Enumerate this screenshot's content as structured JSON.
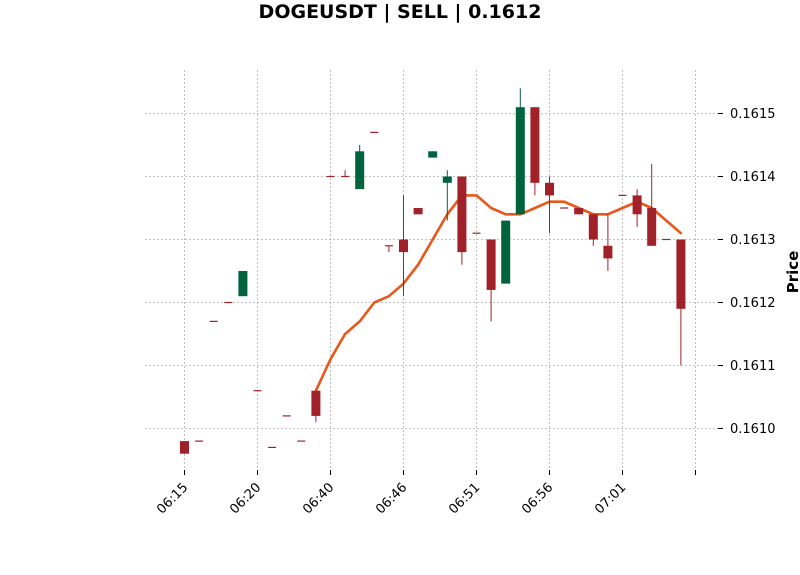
{
  "chart_data": {
    "type": "candlestick",
    "title": "DOGEUSDT | SELL | 0.1612",
    "ylabel": "Price",
    "ylim": [
      0.16093,
      0.16157
    ],
    "yticks": [
      0.161,
      0.1611,
      0.1612,
      0.1613,
      0.1614,
      0.1615
    ],
    "ytick_labels": [
      "0.1610",
      "0.1611",
      "0.1612",
      "0.1613",
      "0.1614",
      "0.1615"
    ],
    "xticks": [
      {
        "index": 0,
        "label": "06:15"
      },
      {
        "index": 5,
        "label": "06:20"
      },
      {
        "index": 10,
        "label": "06:40"
      },
      {
        "index": 15,
        "label": "06:46"
      },
      {
        "index": 20,
        "label": "06:51"
      },
      {
        "index": 25,
        "label": "06:56"
      },
      {
        "index": 30,
        "label": "07:01"
      },
      {
        "index": 35,
        "label": ""
      }
    ],
    "up_color": "#006340",
    "down_color": "#a02128",
    "ma_color": "#e8581a",
    "candles": [
      {
        "o": 0.16098,
        "h": 0.16098,
        "l": 0.16096,
        "c": 0.16096
      },
      {
        "o": 0.16098,
        "h": 0.16098,
        "l": 0.16098,
        "c": 0.16098
      },
      {
        "o": 0.16117,
        "h": 0.16117,
        "l": 0.16117,
        "c": 0.16117
      },
      {
        "o": 0.1612,
        "h": 0.1612,
        "l": 0.1612,
        "c": 0.1612
      },
      {
        "o": 0.16121,
        "h": 0.16125,
        "l": 0.16121,
        "c": 0.16125
      },
      {
        "o": 0.16106,
        "h": 0.16106,
        "l": 0.16106,
        "c": 0.16106
      },
      {
        "o": 0.16097,
        "h": 0.16097,
        "l": 0.16097,
        "c": 0.16097
      },
      {
        "o": 0.16102,
        "h": 0.16102,
        "l": 0.16102,
        "c": 0.16102
      },
      {
        "o": 0.16098,
        "h": 0.16098,
        "l": 0.16098,
        "c": 0.16098
      },
      {
        "o": 0.16106,
        "h": 0.16106,
        "l": 0.16101,
        "c": 0.16102
      },
      {
        "o": 0.1614,
        "h": 0.1614,
        "l": 0.1614,
        "c": 0.1614
      },
      {
        "o": 0.1614,
        "h": 0.16141,
        "l": 0.1614,
        "c": 0.1614
      },
      {
        "o": 0.16138,
        "h": 0.16145,
        "l": 0.16138,
        "c": 0.16144
      },
      {
        "o": 0.16147,
        "h": 0.16147,
        "l": 0.16147,
        "c": 0.16147
      },
      {
        "o": 0.16129,
        "h": 0.16129,
        "l": 0.16128,
        "c": 0.16129
      },
      {
        "o": 0.1613,
        "h": 0.16137,
        "l": 0.16121,
        "c": 0.16128
      },
      {
        "o": 0.16135,
        "h": 0.16135,
        "l": 0.16134,
        "c": 0.16134
      },
      {
        "o": 0.16143,
        "h": 0.16144,
        "l": 0.16143,
        "c": 0.16144
      },
      {
        "o": 0.16139,
        "h": 0.16141,
        "l": 0.16133,
        "c": 0.1614
      },
      {
        "o": 0.1614,
        "h": 0.1614,
        "l": 0.16126,
        "c": 0.16128
      },
      {
        "o": 0.16131,
        "h": 0.16131,
        "l": 0.16131,
        "c": 0.16131
      },
      {
        "o": 0.1613,
        "h": 0.1613,
        "l": 0.16117,
        "c": 0.16122
      },
      {
        "o": 0.16123,
        "h": 0.16133,
        "l": 0.16123,
        "c": 0.16133
      },
      {
        "o": 0.16134,
        "h": 0.16154,
        "l": 0.16134,
        "c": 0.16151
      },
      {
        "o": 0.16151,
        "h": 0.16151,
        "l": 0.16137,
        "c": 0.16139
      },
      {
        "o": 0.16139,
        "h": 0.1614,
        "l": 0.16131,
        "c": 0.16137
      },
      {
        "o": 0.16135,
        "h": 0.16135,
        "l": 0.16135,
        "c": 0.16135
      },
      {
        "o": 0.16135,
        "h": 0.16135,
        "l": 0.16134,
        "c": 0.16134
      },
      {
        "o": 0.16134,
        "h": 0.16134,
        "l": 0.16129,
        "c": 0.1613
      },
      {
        "o": 0.16129,
        "h": 0.16134,
        "l": 0.16125,
        "c": 0.16127
      },
      {
        "o": 0.16137,
        "h": 0.16137,
        "l": 0.16137,
        "c": 0.16137
      },
      {
        "o": 0.16137,
        "h": 0.16138,
        "l": 0.16132,
        "c": 0.16134
      },
      {
        "o": 0.16135,
        "h": 0.16142,
        "l": 0.16129,
        "c": 0.16129
      },
      {
        "o": 0.1613,
        "h": 0.1613,
        "l": 0.1613,
        "c": 0.1613
      },
      {
        "o": 0.1613,
        "h": 0.1613,
        "l": 0.1611,
        "c": 0.16119
      }
    ],
    "moving_average": [
      {
        "index": 9,
        "value": 0.16106
      },
      {
        "index": 10,
        "value": 0.16111
      },
      {
        "index": 11,
        "value": 0.16115
      },
      {
        "index": 12,
        "value": 0.16117
      },
      {
        "index": 13,
        "value": 0.1612
      },
      {
        "index": 14,
        "value": 0.16121
      },
      {
        "index": 15,
        "value": 0.16123
      },
      {
        "index": 16,
        "value": 0.16126
      },
      {
        "index": 17,
        "value": 0.1613
      },
      {
        "index": 18,
        "value": 0.16134
      },
      {
        "index": 19,
        "value": 0.16137
      },
      {
        "index": 20,
        "value": 0.16137
      },
      {
        "index": 21,
        "value": 0.16135
      },
      {
        "index": 22,
        "value": 0.16134
      },
      {
        "index": 23,
        "value": 0.16134
      },
      {
        "index": 24,
        "value": 0.16135
      },
      {
        "index": 25,
        "value": 0.16136
      },
      {
        "index": 26,
        "value": 0.16136
      },
      {
        "index": 27,
        "value": 0.16135
      },
      {
        "index": 28,
        "value": 0.16134
      },
      {
        "index": 29,
        "value": 0.16134
      },
      {
        "index": 30,
        "value": 0.16135
      },
      {
        "index": 31,
        "value": 0.16136
      },
      {
        "index": 32,
        "value": 0.16135
      },
      {
        "index": 33,
        "value": 0.16133
      },
      {
        "index": 34,
        "value": 0.16131
      }
    ]
  }
}
